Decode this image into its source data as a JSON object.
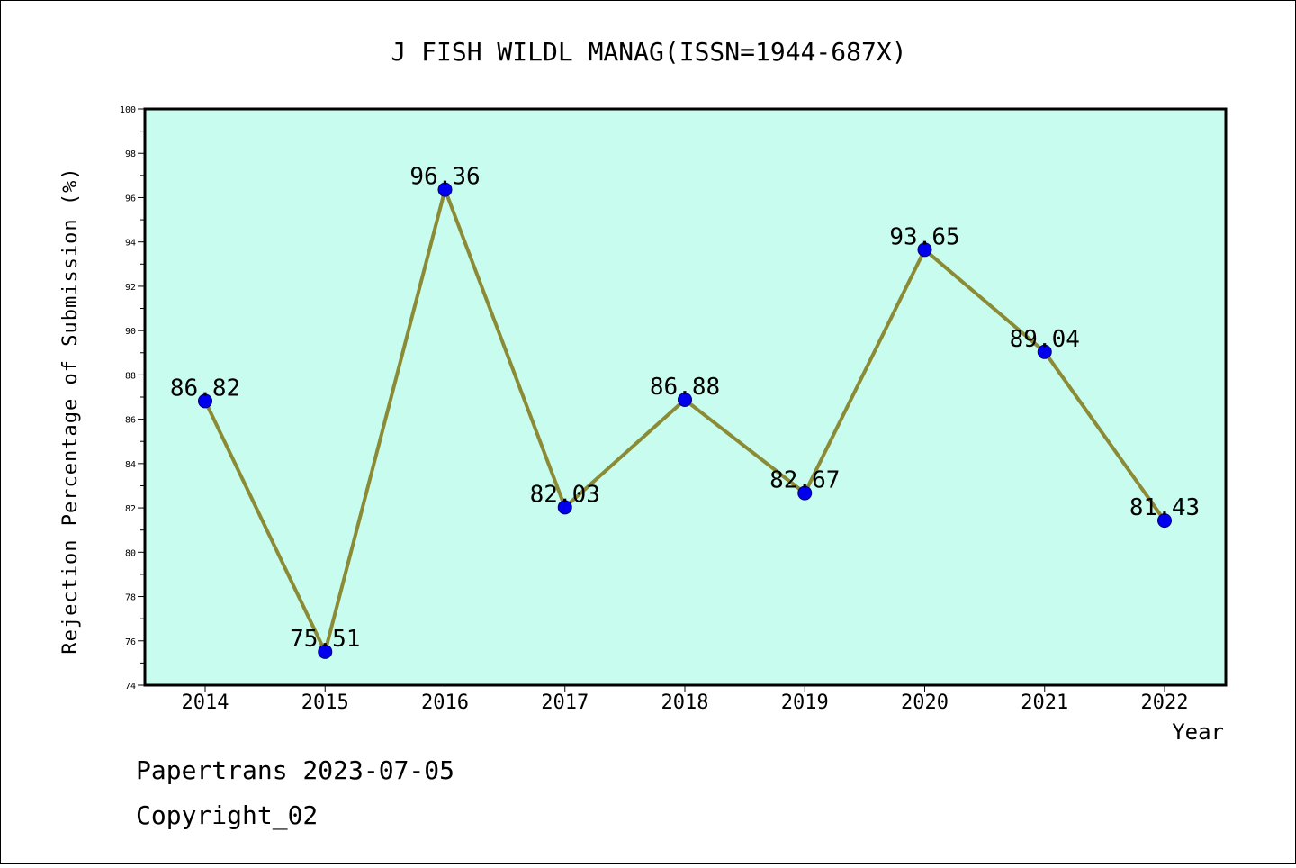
{
  "chart_data": {
    "type": "line",
    "title": "J FISH WILDL MANAG(ISSN=1944-687X)",
    "xlabel": "Year",
    "ylabel": "Rejection Percentage of Submission (%)",
    "categories": [
      "2014",
      "2015",
      "2016",
      "2017",
      "2018",
      "2019",
      "2020",
      "2021",
      "2022"
    ],
    "values": [
      86.82,
      75.51,
      96.36,
      82.03,
      86.88,
      82.67,
      93.65,
      89.04,
      81.43
    ],
    "data_labels": [
      "86.82",
      "75.51",
      "96.36",
      "82.03",
      "86.88",
      "82.67",
      "93.65",
      "89.04",
      "81.43"
    ],
    "ylim": [
      74,
      100
    ],
    "yticks": [
      "74",
      "76",
      "78",
      "80",
      "82",
      "84",
      "86",
      "88",
      "90",
      "92",
      "94",
      "96",
      "98",
      "100"
    ],
    "plot_background": "#c8fcee",
    "line_color": "#8b8a35",
    "marker_color": "#0000ee",
    "grid": false,
    "legend": "none"
  },
  "footer": {
    "line1": "Papertrans 2023-07-05",
    "line2": "Copyright_02"
  }
}
